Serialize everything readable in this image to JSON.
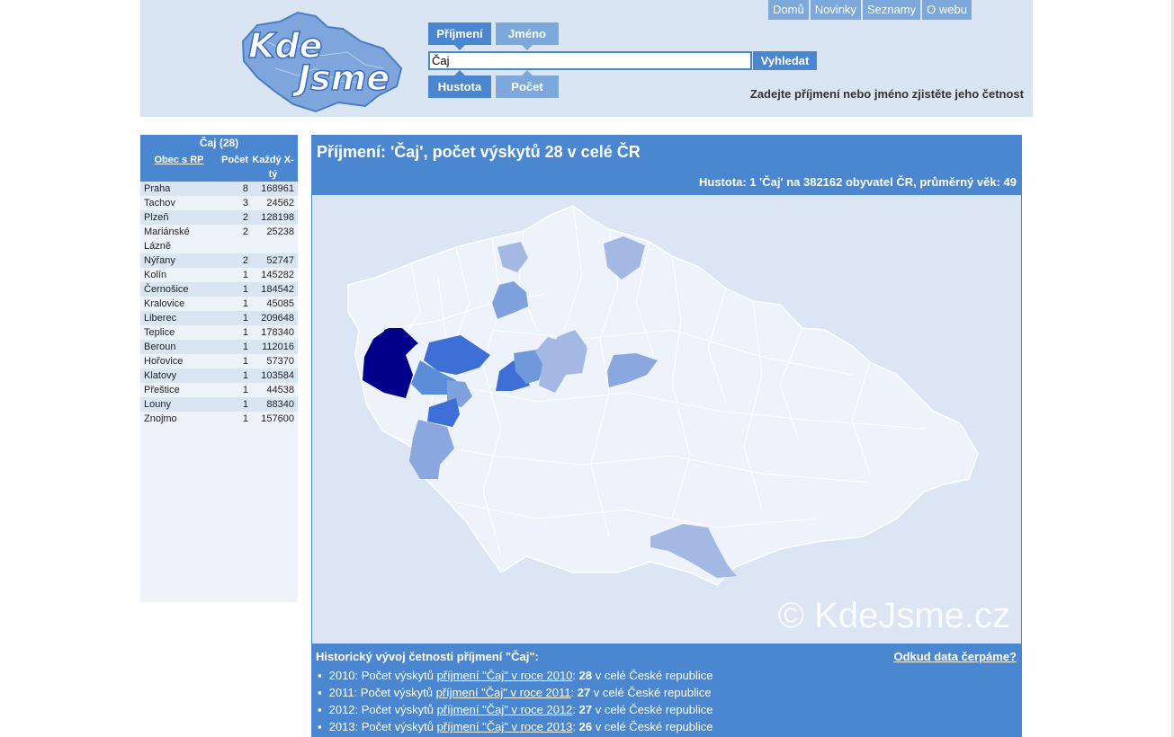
{
  "logo": {
    "line1": "Kde",
    "line2": "Jsme"
  },
  "tabs": {
    "surname": "Příjmení",
    "firstname": "Jméno",
    "density": "Hustota",
    "count": "Počet"
  },
  "search": {
    "value": "Čaj",
    "button": "Vyhledat",
    "hint": "Zadejte příjmení nebo jméno zjistěte jeho četnost"
  },
  "nav": {
    "home": "Domů",
    "news": "Novinky",
    "lists": "Seznamy",
    "about": "O webu"
  },
  "sidebar": {
    "title": "Čaj (28)",
    "col1": "Obec s RP",
    "col2": "Počet",
    "col3": "Každý X-tý",
    "rows": [
      {
        "city": "Praha",
        "count": "8",
        "every": "168961"
      },
      {
        "city": "Tachov",
        "count": "3",
        "every": "24562"
      },
      {
        "city": "Plzeň",
        "count": "2",
        "every": "128198"
      },
      {
        "city": "Mariánské Lázně",
        "count": "2",
        "every": "25238"
      },
      {
        "city": "Nýřany",
        "count": "2",
        "every": "52747"
      },
      {
        "city": "Kolín",
        "count": "1",
        "every": "145282"
      },
      {
        "city": "Černošice",
        "count": "1",
        "every": "184542"
      },
      {
        "city": "Kralovice",
        "count": "1",
        "every": "45085"
      },
      {
        "city": "Liberec",
        "count": "1",
        "every": "209648"
      },
      {
        "city": "Teplice",
        "count": "1",
        "every": "178340"
      },
      {
        "city": "Beroun",
        "count": "1",
        "every": "112016"
      },
      {
        "city": "Hořovice",
        "count": "1",
        "every": "57370"
      },
      {
        "city": "Klatovy",
        "count": "1",
        "every": "103584"
      },
      {
        "city": "Přeštice",
        "count": "1",
        "every": "44538"
      },
      {
        "city": "Louny",
        "count": "1",
        "every": "88340"
      },
      {
        "city": "Znojmo",
        "count": "1",
        "every": "157600"
      }
    ]
  },
  "main": {
    "title": "Příjmení: 'Čaj', počet výskytů 28 v celé ČR",
    "density": "Hustota: 1 'Čaj' na 382162 obyvatel ČR, průměrný věk: 49",
    "watermark": "© KdeJsme.cz"
  },
  "history": {
    "title": "Historický vývoj četnosti příjmení \"Čaj\":",
    "source_link": "Odkud data čerpáme?",
    "items": [
      {
        "year": "2010",
        "prefix": "2010: Počet výskytů ",
        "link": "příjmení \"Čaj\" v roce 2010",
        "sep": ": ",
        "count": "28",
        "suffix": " v celé České republice"
      },
      {
        "year": "2011",
        "prefix": "2011: Počet výskytů ",
        "link": "příjmení \"Čaj\" v roce 2011",
        "sep": ": ",
        "count": "27",
        "suffix": " v celé České republice"
      },
      {
        "year": "2012",
        "prefix": "2012: Počet výskytů ",
        "link": "příjmení \"Čaj\" v roce 2012",
        "sep": ": ",
        "count": "27",
        "suffix": " v celé České republice"
      },
      {
        "year": "2013",
        "prefix": "2013: Počet výskytů ",
        "link": "příjmení \"Čaj\" v roce 2013",
        "sep": ": ",
        "count": "26",
        "suffix": " v celé České republice"
      }
    ]
  },
  "colors": {
    "primary": "#4a87d0",
    "tab_inactive": "#7da8dc",
    "header_bg": "#dae5f3",
    "map_high": "#00008b",
    "map_mid": "#3e6fd6",
    "map_low": "#a3b8e2",
    "map_base": "#eef2fa"
  }
}
